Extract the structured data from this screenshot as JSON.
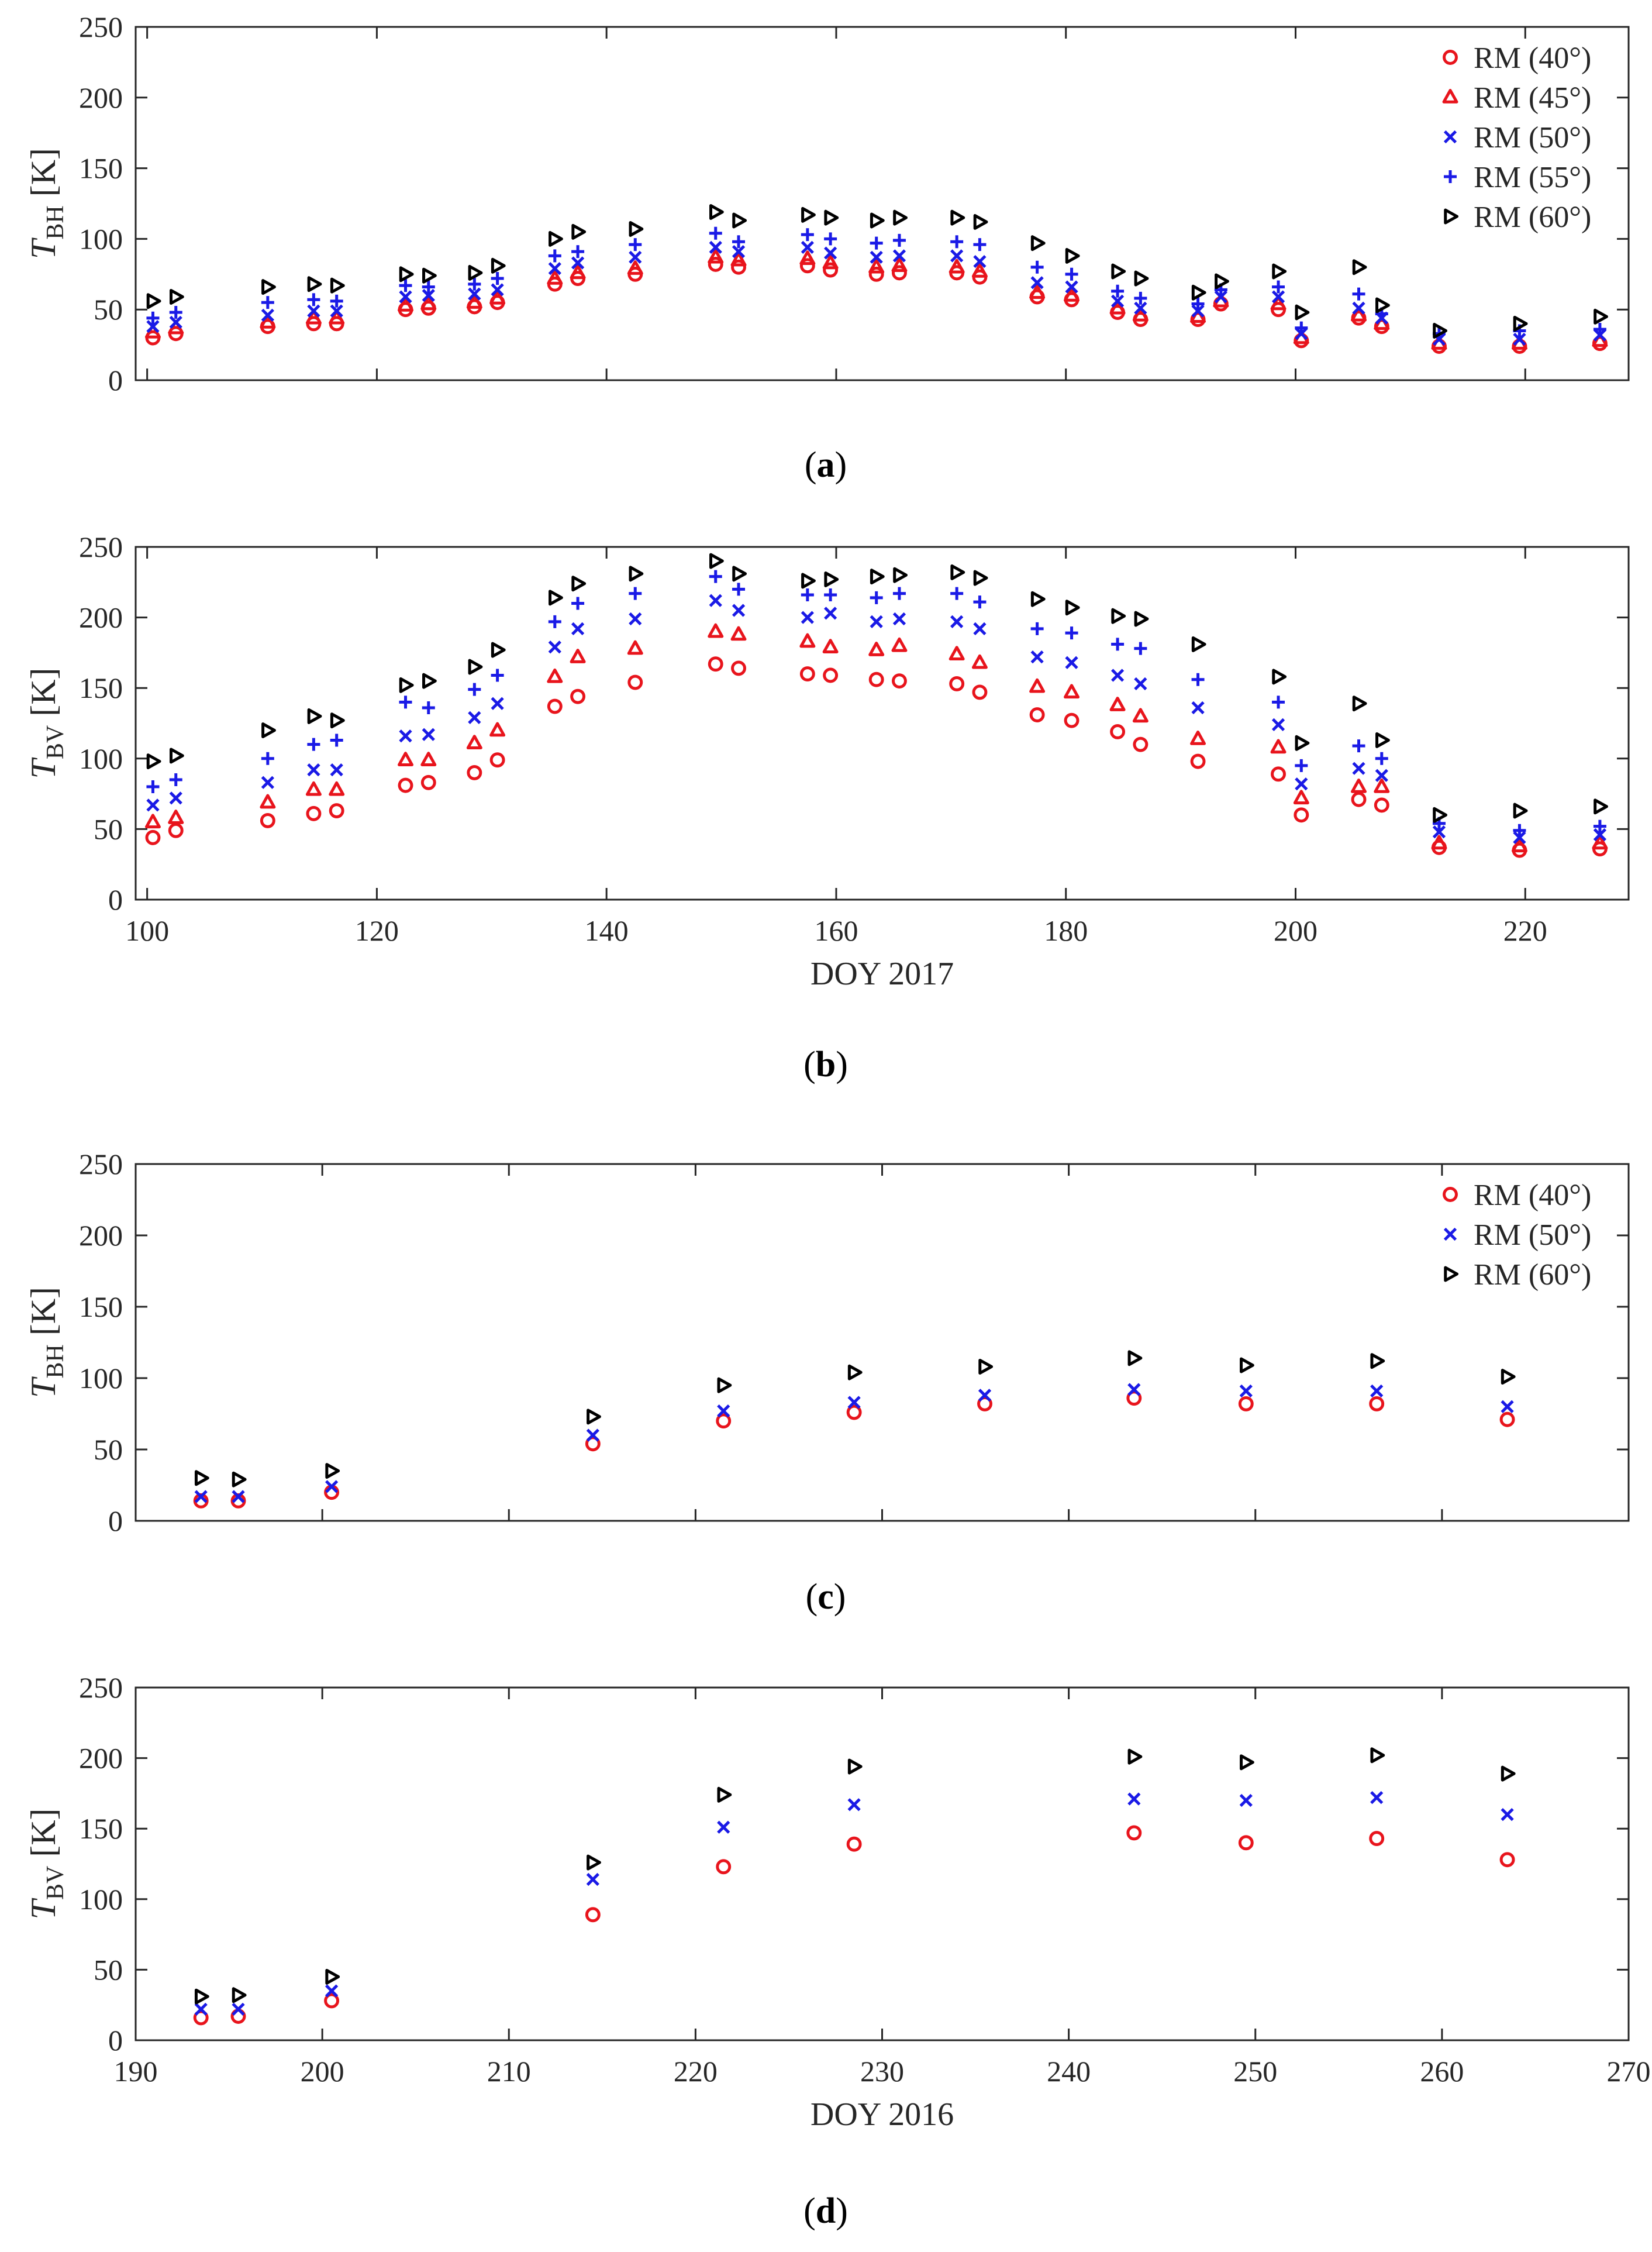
{
  "chart_data": [
    {
      "type": "scatter",
      "id": "a",
      "caption": "(a)",
      "ylabel_main": "T",
      "ylabel_sub": "BH",
      "ylabel_unit": " [K]",
      "xlabel": "",
      "show_xticklabels": false,
      "xlim": [
        99,
        229
      ],
      "xticks": [
        100,
        120,
        140,
        160,
        180,
        200,
        220
      ],
      "ylim": [
        0,
        250
      ],
      "yticks": [
        0,
        50,
        100,
        150,
        200,
        250
      ],
      "legend": "top-right",
      "legend_entries": [
        "RM (40°)",
        "RM (45°)",
        "RM (50°)",
        "RM (55°)",
        "RM (60°)"
      ],
      "x": [
        100.5,
        102.5,
        110.5,
        114.5,
        116.5,
        122.5,
        124.5,
        128.5,
        130.5,
        135.5,
        137.5,
        142.5,
        149.5,
        151.5,
        157.5,
        159.5,
        163.5,
        165.5,
        170.5,
        172.5,
        177.5,
        180.5,
        184.5,
        186.5,
        191.5,
        193.5,
        198.5,
        200.5,
        205.5,
        207.5,
        212.5,
        219.5,
        226.5
      ],
      "series": [
        {
          "name": "RM (40°)",
          "marker": "circle",
          "color": "#e8141c",
          "values": [
            30,
            33,
            38,
            40,
            40,
            50,
            51,
            52,
            55,
            68,
            72,
            75,
            82,
            80,
            81,
            78,
            75,
            76,
            76,
            73,
            59,
            57,
            48,
            43,
            43,
            54,
            50,
            28,
            44,
            38,
            24,
            24,
            26
          ]
        },
        {
          "name": "RM (45°)",
          "marker": "triangle-up",
          "color": "#e8141c",
          "values": [
            34,
            37,
            41,
            44,
            44,
            53,
            54,
            55,
            58,
            72,
            76,
            79,
            87,
            85,
            86,
            83,
            80,
            81,
            80,
            77,
            62,
            60,
            51,
            46,
            45,
            56,
            54,
            30,
            46,
            40,
            26,
            26,
            28
          ]
        },
        {
          "name": "RM (50°)",
          "marker": "x",
          "color": "#1a1ae6",
          "values": [
            38,
            41,
            46,
            49,
            49,
            59,
            60,
            61,
            64,
            79,
            83,
            87,
            94,
            91,
            94,
            90,
            87,
            88,
            88,
            84,
            69,
            66,
            56,
            51,
            49,
            59,
            59,
            33,
            51,
            44,
            29,
            29,
            32
          ]
        },
        {
          "name": "RM (55°)",
          "marker": "plus",
          "color": "#1a1ae6",
          "values": [
            44,
            48,
            55,
            57,
            56,
            67,
            66,
            68,
            72,
            88,
            91,
            96,
            104,
            98,
            103,
            100,
            97,
            99,
            98,
            96,
            80,
            75,
            63,
            58,
            54,
            64,
            66,
            37,
            61,
            47,
            33,
            35,
            36
          ]
        },
        {
          "name": "RM (60°)",
          "marker": "triangle-right",
          "color": "#000000",
          "values": [
            56,
            59,
            66,
            68,
            67,
            75,
            74,
            76,
            81,
            100,
            105,
            107,
            119,
            113,
            117,
            115,
            113,
            115,
            115,
            112,
            97,
            88,
            77,
            72,
            62,
            70,
            77,
            48,
            80,
            53,
            35,
            40,
            45
          ]
        }
      ]
    },
    {
      "type": "scatter",
      "id": "b",
      "caption": "(b)",
      "ylabel_main": "T",
      "ylabel_sub": "BV",
      "ylabel_unit": " [K]",
      "xlabel": "DOY 2017",
      "show_xticklabels": true,
      "xlim": [
        99,
        229
      ],
      "xticks": [
        100,
        120,
        140,
        160,
        180,
        200,
        220
      ],
      "ylim": [
        0,
        250
      ],
      "yticks": [
        0,
        50,
        100,
        150,
        200,
        250
      ],
      "legend": "none",
      "legend_entries": [],
      "x": [
        100.5,
        102.5,
        110.5,
        114.5,
        116.5,
        122.5,
        124.5,
        128.5,
        130.5,
        135.5,
        137.5,
        142.5,
        149.5,
        151.5,
        157.5,
        159.5,
        163.5,
        165.5,
        170.5,
        172.5,
        177.5,
        180.5,
        184.5,
        186.5,
        191.5,
        198.5,
        200.5,
        205.5,
        207.5,
        212.5,
        219.5,
        226.5
      ],
      "series": [
        {
          "name": "RM (40°)",
          "marker": "circle",
          "color": "#e8141c",
          "values": [
            44,
            49,
            56,
            61,
            63,
            81,
            83,
            90,
            99,
            137,
            144,
            154,
            167,
            164,
            160,
            159,
            156,
            155,
            153,
            147,
            131,
            127,
            119,
            110,
            98,
            89,
            60,
            71,
            67,
            37,
            35,
            36
          ]
        },
        {
          "name": "RM (45°)",
          "marker": "triangle-up",
          "color": "#e8141c",
          "values": [
            55,
            58,
            69,
            78,
            78,
            99,
            99,
            111,
            120,
            158,
            172,
            178,
            190,
            188,
            183,
            179,
            177,
            180,
            174,
            168,
            151,
            147,
            138,
            130,
            114,
            108,
            72,
            80,
            80,
            40,
            38,
            40
          ]
        },
        {
          "name": "RM (50°)",
          "marker": "x",
          "color": "#1a1ae6",
          "values": [
            67,
            72,
            83,
            92,
            92,
            116,
            117,
            129,
            139,
            179,
            192,
            199,
            212,
            205,
            200,
            203,
            197,
            199,
            197,
            192,
            172,
            168,
            159,
            153,
            136,
            124,
            82,
            93,
            88,
            48,
            44,
            46
          ]
        },
        {
          "name": "RM (55°)",
          "marker": "plus",
          "color": "#1a1ae6",
          "values": [
            80,
            85,
            100,
            110,
            113,
            140,
            136,
            149,
            159,
            197,
            210,
            217,
            229,
            220,
            216,
            216,
            214,
            217,
            217,
            211,
            192,
            189,
            181,
            178,
            156,
            140,
            95,
            109,
            100,
            54,
            49,
            52
          ]
        },
        {
          "name": "RM (60°)",
          "marker": "triangle-right",
          "color": "#000000",
          "values": [
            98,
            102,
            120,
            130,
            127,
            152,
            155,
            165,
            177,
            214,
            224,
            231,
            240,
            231,
            226,
            227,
            229,
            230,
            232,
            228,
            213,
            207,
            201,
            199,
            181,
            158,
            111,
            139,
            113,
            60,
            63,
            66
          ]
        }
      ]
    },
    {
      "type": "scatter",
      "id": "c",
      "caption": "(c)",
      "ylabel_main": "T",
      "ylabel_sub": "BH",
      "ylabel_unit": " [K]",
      "xlabel": "",
      "show_xticklabels": false,
      "xlim": [
        190,
        270
      ],
      "xticks": [
        190,
        200,
        210,
        220,
        230,
        240,
        250,
        260,
        270
      ],
      "ylim": [
        0,
        250
      ],
      "yticks": [
        0,
        50,
        100,
        150,
        200,
        250
      ],
      "legend": "top-right",
      "legend_entries": [
        "RM (40°)",
        "RM (50°)",
        "RM (60°)"
      ],
      "x": [
        193.5,
        195.5,
        200.5,
        214.5,
        221.5,
        228.5,
        235.5,
        243.5,
        249.5,
        256.5,
        263.5
      ],
      "series": [
        {
          "name": "RM (40°)",
          "marker": "circle",
          "color": "#e8141c",
          "values": [
            14,
            14,
            20,
            54,
            70,
            76,
            82,
            86,
            82,
            82,
            71
          ]
        },
        {
          "name": "RM (50°)",
          "marker": "x",
          "color": "#1a1ae6",
          "values": [
            17,
            17,
            24,
            60,
            77,
            83,
            88,
            92,
            91,
            91,
            80
          ]
        },
        {
          "name": "RM (60°)",
          "marker": "triangle-right",
          "color": "#000000",
          "values": [
            30,
            29,
            35,
            73,
            95,
            104,
            108,
            114,
            109,
            112,
            101
          ]
        }
      ]
    },
    {
      "type": "scatter",
      "id": "d",
      "caption": "(d)",
      "ylabel_main": "T",
      "ylabel_sub": "BV",
      "ylabel_unit": " [K]",
      "xlabel": "DOY 2016",
      "show_xticklabels": true,
      "xlim": [
        190,
        270
      ],
      "xticks": [
        190,
        200,
        210,
        220,
        230,
        240,
        250,
        260,
        270
      ],
      "ylim": [
        0,
        250
      ],
      "yticks": [
        0,
        50,
        100,
        150,
        200,
        250
      ],
      "legend": "none",
      "legend_entries": [],
      "x": [
        193.5,
        195.5,
        200.5,
        214.5,
        221.5,
        228.5,
        243.5,
        249.5,
        256.5,
        263.5
      ],
      "series": [
        {
          "name": "RM (40°)",
          "marker": "circle",
          "color": "#e8141c",
          "values": [
            16,
            17,
            28,
            89,
            123,
            139,
            147,
            140,
            143,
            128
          ]
        },
        {
          "name": "RM (50°)",
          "marker": "x",
          "color": "#1a1ae6",
          "values": [
            22,
            22,
            35,
            114,
            151,
            167,
            171,
            170,
            172,
            160
          ]
        },
        {
          "name": "RM (60°)",
          "marker": "triangle-right",
          "color": "#000000",
          "values": [
            31,
            32,
            45,
            126,
            174,
            194,
            201,
            197,
            202,
            189
          ]
        }
      ]
    }
  ]
}
